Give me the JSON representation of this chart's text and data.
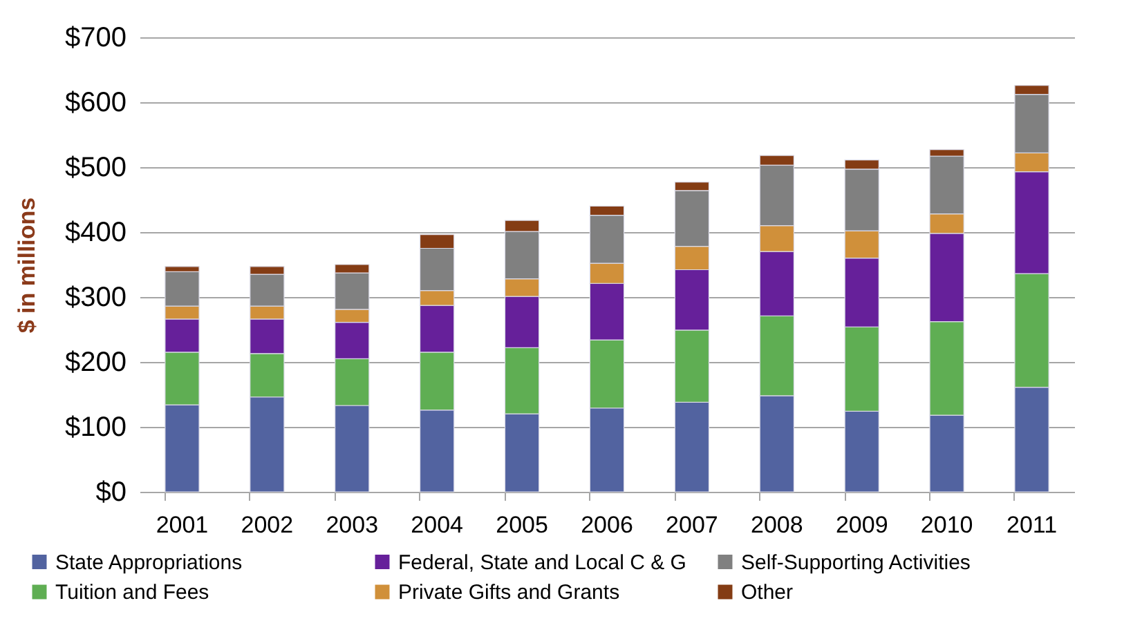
{
  "chart_data": {
    "type": "bar",
    "stacked": true,
    "ylabel": "$ in millions",
    "categories": [
      "2001",
      "2002",
      "2003",
      "2004",
      "2005",
      "2006",
      "2007",
      "2008",
      "2009",
      "2010",
      "2011"
    ],
    "series": [
      {
        "name": "State Appropriations",
        "color": "#5263a0",
        "values": [
          134,
          146,
          133,
          126,
          120,
          129,
          138,
          148,
          124,
          118,
          161
        ]
      },
      {
        "name": "Tuition and Fees",
        "color": "#5fae53",
        "values": [
          81,
          67,
          72,
          89,
          102,
          105,
          111,
          123,
          130,
          144,
          175
        ]
      },
      {
        "name": "Federal, State and Local C & G",
        "color": "#66209a",
        "values": [
          51,
          53,
          56,
          72,
          79,
          87,
          93,
          99,
          106,
          136,
          157
        ]
      },
      {
        "name": "Private Gifts and Grants",
        "color": "#d0903a",
        "values": [
          20,
          20,
          20,
          23,
          27,
          31,
          36,
          40,
          42,
          30,
          29
        ]
      },
      {
        "name": "Self-Supporting Activities",
        "color": "#808080",
        "values": [
          53,
          49,
          56,
          65,
          73,
          74,
          86,
          93,
          95,
          89,
          90
        ]
      },
      {
        "name": "Other",
        "color": "#843c14",
        "values": [
          8,
          12,
          13,
          21,
          17,
          14,
          13,
          15,
          14,
          10,
          14
        ]
      }
    ],
    "ylim": [
      0,
      700
    ],
    "yticks": [
      {
        "value": 0,
        "label": "$0"
      },
      {
        "value": 100,
        "label": "$100"
      },
      {
        "value": 200,
        "label": "$200"
      },
      {
        "value": 300,
        "label": "$300"
      },
      {
        "value": 400,
        "label": "$400"
      },
      {
        "value": 500,
        "label": "$500"
      },
      {
        "value": 600,
        "label": "$600"
      },
      {
        "value": 700,
        "label": "$700"
      }
    ],
    "grid": "y",
    "legend": "bottom"
  }
}
